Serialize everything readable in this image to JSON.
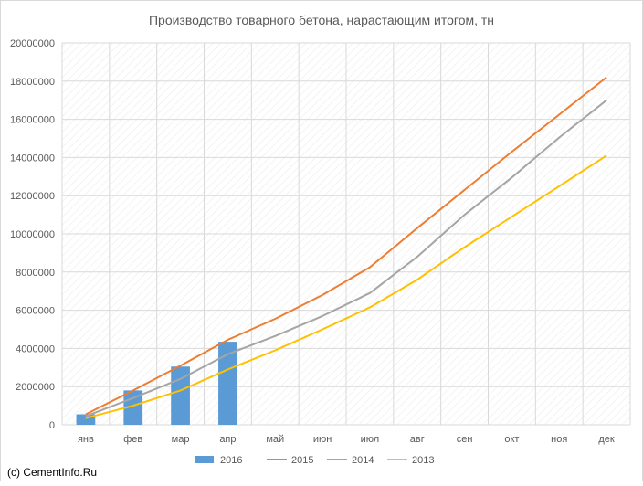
{
  "chart_data": {
    "type": "bar",
    "title": "Производство товарного бетона, нарастающим итогом, тн",
    "xlabel": "",
    "ylabel": "",
    "categories": [
      "янв",
      "фев",
      "мар",
      "апр",
      "май",
      "июн",
      "июл",
      "авг",
      "сен",
      "окт",
      "ноя",
      "дек"
    ],
    "ylim": [
      0,
      20000000
    ],
    "yticks": [
      "0",
      "2000000",
      "4000000",
      "6000000",
      "8000000",
      "10000000",
      "12000000",
      "14000000",
      "16000000",
      "18000000",
      "20000000"
    ],
    "series": [
      {
        "name": "2016",
        "type": "bar",
        "color": "#5b9bd5",
        "values": [
          550000,
          1800000,
          3050000,
          4350000,
          null,
          null,
          null,
          null,
          null,
          null,
          null,
          null
        ]
      },
      {
        "name": "2015",
        "type": "line",
        "color": "#ed7d31",
        "values": [
          550000,
          1800000,
          3100000,
          4450000,
          5550000,
          6800000,
          8250000,
          10300000,
          12300000,
          14300000,
          16250000,
          18200000
        ]
      },
      {
        "name": "2014",
        "type": "line",
        "color": "#a5a5a5",
        "values": [
          450000,
          1400000,
          2400000,
          3700000,
          4650000,
          5700000,
          6900000,
          8800000,
          11000000,
          12950000,
          15050000,
          17000000
        ]
      },
      {
        "name": "2013",
        "type": "line",
        "color": "#ffc000",
        "values": [
          350000,
          1000000,
          1800000,
          2900000,
          3900000,
          5000000,
          6150000,
          7600000,
          9300000,
          10900000,
          12500000,
          14100000
        ]
      }
    ],
    "grid": true,
    "legend_position": "bottom"
  },
  "footer": {
    "copyright": "(c) CementInfo.Ru"
  }
}
